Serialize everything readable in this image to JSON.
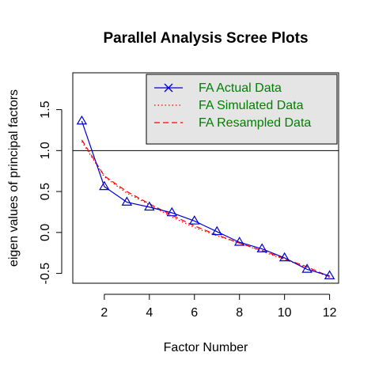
{
  "chart_data": {
    "type": "line",
    "title": "Parallel Analysis Scree Plots",
    "xlabel": "Factor Number",
    "ylabel": "eigen values of principal factors",
    "xlim": [
      0.6,
      12.4
    ],
    "ylim": [
      -0.62,
      1.95
    ],
    "x_ticks": [
      "2",
      "4",
      "6",
      "8",
      "10",
      "12"
    ],
    "y_ticks": [
      "-0.5",
      "0.0",
      "0.5",
      "1.0",
      "1.5"
    ],
    "x": [
      1,
      2,
      3,
      4,
      5,
      6,
      7,
      8,
      9,
      10,
      11,
      12
    ],
    "reference_line_y": 1.0,
    "series": [
      {
        "name": "FA  Actual Data",
        "color": "#0000cd",
        "style": "solid-triangle-markers",
        "values": [
          1.36,
          0.56,
          0.37,
          0.31,
          0.24,
          0.14,
          0.01,
          -0.12,
          -0.2,
          -0.31,
          -0.45,
          -0.53
        ]
      },
      {
        "name": "FA  Simulated Data",
        "color": "#ff0000",
        "style": "dotted",
        "values": [
          1.11,
          0.68,
          0.48,
          0.34,
          0.19,
          0.06,
          -0.04,
          -0.13,
          -0.23,
          -0.33,
          -0.43,
          -0.55
        ]
      },
      {
        "name": "FA  Resampled Data",
        "color": "#ff0000",
        "style": "dashed",
        "values": [
          1.13,
          0.69,
          0.5,
          0.35,
          0.21,
          0.08,
          -0.03,
          -0.13,
          -0.22,
          -0.32,
          -0.42,
          -0.54
        ]
      }
    ],
    "legend": {
      "position": "top-right",
      "background": "#e5e5e5",
      "text_color": "#008000",
      "marker_color": "#0000cd"
    },
    "grid": false
  }
}
